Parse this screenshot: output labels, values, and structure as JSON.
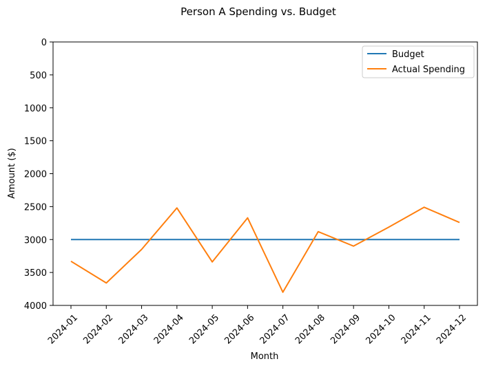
{
  "chart_data": {
    "type": "line",
    "title": "Person A Spending vs. Budget",
    "xlabel": "Month",
    "ylabel": "Amount ($)",
    "x": [
      "2024-01",
      "2024-02",
      "2024-03",
      "2024-04",
      "2024-05",
      "2024-06",
      "2024-07",
      "2024-08",
      "2024-09",
      "2024-10",
      "2024-11",
      "2024-12"
    ],
    "ylim": [
      4000,
      0
    ],
    "y_inverted": true,
    "yticks": [
      0,
      500,
      1000,
      1500,
      2000,
      2500,
      3000,
      3500,
      4000
    ],
    "grid": false,
    "legend_position": "top-right",
    "series": [
      {
        "name": "Budget",
        "color": "#1f77b4",
        "values": [
          3000,
          3000,
          3000,
          3000,
          3000,
          3000,
          3000,
          3000,
          3000,
          3000,
          3000,
          3000
        ]
      },
      {
        "name": "Actual Spending",
        "color": "#ff7f0e",
        "values": [
          3330,
          3660,
          3150,
          2520,
          3340,
          2670,
          3800,
          2880,
          3100,
          2810,
          2510,
          2740
        ]
      }
    ]
  }
}
